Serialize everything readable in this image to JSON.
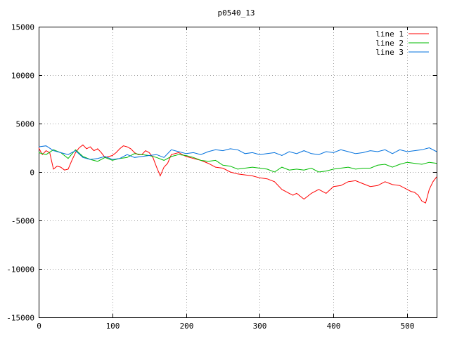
{
  "chart_data": {
    "type": "line",
    "title": "p0540_13",
    "xlabel": "",
    "ylabel": "",
    "xlim": [
      0,
      540
    ],
    "ylim": [
      -15000,
      15000
    ],
    "xticks": [
      0,
      100,
      200,
      300,
      400,
      500
    ],
    "yticks": [
      -15000,
      -10000,
      -5000,
      0,
      5000,
      10000,
      15000
    ],
    "grid": true,
    "legend_position": "top-right",
    "series": [
      {
        "name": "line 1",
        "color": "#ff0000",
        "x": [
          0,
          5,
          10,
          15,
          20,
          25,
          30,
          35,
          40,
          45,
          50,
          55,
          60,
          65,
          70,
          75,
          80,
          85,
          90,
          95,
          100,
          105,
          110,
          115,
          120,
          125,
          130,
          135,
          140,
          145,
          150,
          155,
          160,
          165,
          170,
          175,
          180,
          190,
          200,
          210,
          220,
          230,
          240,
          250,
          260,
          270,
          280,
          290,
          300,
          310,
          320,
          330,
          340,
          345,
          350,
          355,
          360,
          365,
          370,
          380,
          390,
          400,
          410,
          420,
          430,
          440,
          450,
          460,
          470,
          480,
          490,
          500,
          505,
          510,
          515,
          520,
          525,
          530,
          535,
          540
        ],
        "values": [
          2500,
          1800,
          2200,
          2000,
          300,
          600,
          500,
          200,
          300,
          1200,
          2000,
          2500,
          2800,
          2400,
          2600,
          2200,
          2400,
          2000,
          1500,
          1600,
          1700,
          2000,
          2400,
          2700,
          2600,
          2400,
          2000,
          1800,
          1800,
          2200,
          2000,
          1500,
          500,
          -400,
          500,
          900,
          1800,
          2000,
          1600,
          1400,
          1200,
          900,
          500,
          400,
          0,
          -200,
          -300,
          -400,
          -600,
          -700,
          -1000,
          -1800,
          -2200,
          -2400,
          -2200,
          -2500,
          -2800,
          -2500,
          -2200,
          -1800,
          -2200,
          -1500,
          -1400,
          -1000,
          -900,
          -1200,
          -1500,
          -1400,
          -1000,
          -1300,
          -1400,
          -1800,
          -2000,
          -2100,
          -2400,
          -3000,
          -3200,
          -1800,
          -1000,
          -500
        ]
      },
      {
        "name": "line 2",
        "color": "#00bb00",
        "x": [
          0,
          10,
          20,
          30,
          40,
          50,
          60,
          70,
          80,
          90,
          100,
          110,
          120,
          130,
          140,
          150,
          160,
          170,
          180,
          190,
          200,
          210,
          220,
          230,
          240,
          250,
          260,
          270,
          280,
          290,
          300,
          310,
          320,
          330,
          340,
          350,
          360,
          370,
          380,
          390,
          400,
          410,
          420,
          430,
          440,
          450,
          460,
          470,
          480,
          490,
          500,
          510,
          520,
          530,
          540
        ],
        "values": [
          2000,
          1800,
          2300,
          2000,
          1400,
          2300,
          1600,
          1300,
          1100,
          1500,
          1200,
          1400,
          1500,
          1900,
          1800,
          1700,
          1500,
          1200,
          1600,
          1800,
          1700,
          1500,
          1200,
          1100,
          1200,
          700,
          600,
          300,
          400,
          500,
          400,
          300,
          0,
          500,
          200,
          300,
          200,
          400,
          0,
          100,
          300,
          400,
          500,
          300,
          400,
          400,
          700,
          800,
          500,
          800,
          1000,
          900,
          800,
          1000,
          900
        ]
      },
      {
        "name": "line 3",
        "color": "#0070dd",
        "x": [
          0,
          10,
          20,
          30,
          40,
          50,
          60,
          70,
          80,
          90,
          100,
          110,
          120,
          130,
          140,
          150,
          160,
          170,
          180,
          190,
          200,
          210,
          220,
          230,
          240,
          250,
          260,
          270,
          280,
          290,
          300,
          310,
          320,
          330,
          340,
          350,
          360,
          370,
          380,
          390,
          400,
          410,
          420,
          430,
          440,
          450,
          460,
          470,
          480,
          490,
          500,
          510,
          520,
          530,
          540
        ],
        "values": [
          2600,
          2700,
          2200,
          2000,
          1800,
          2200,
          1500,
          1300,
          1400,
          1600,
          1300,
          1400,
          1800,
          1500,
          1600,
          1700,
          1800,
          1500,
          2300,
          2100,
          1900,
          2000,
          1800,
          2100,
          2300,
          2200,
          2400,
          2300,
          1900,
          2000,
          1800,
          1900,
          2000,
          1700,
          2100,
          1900,
          2200,
          1900,
          1800,
          2100,
          2000,
          2300,
          2100,
          1900,
          2000,
          2200,
          2100,
          2300,
          1900,
          2300,
          2100,
          2200,
          2300,
          2500,
          2100
        ]
      }
    ]
  }
}
